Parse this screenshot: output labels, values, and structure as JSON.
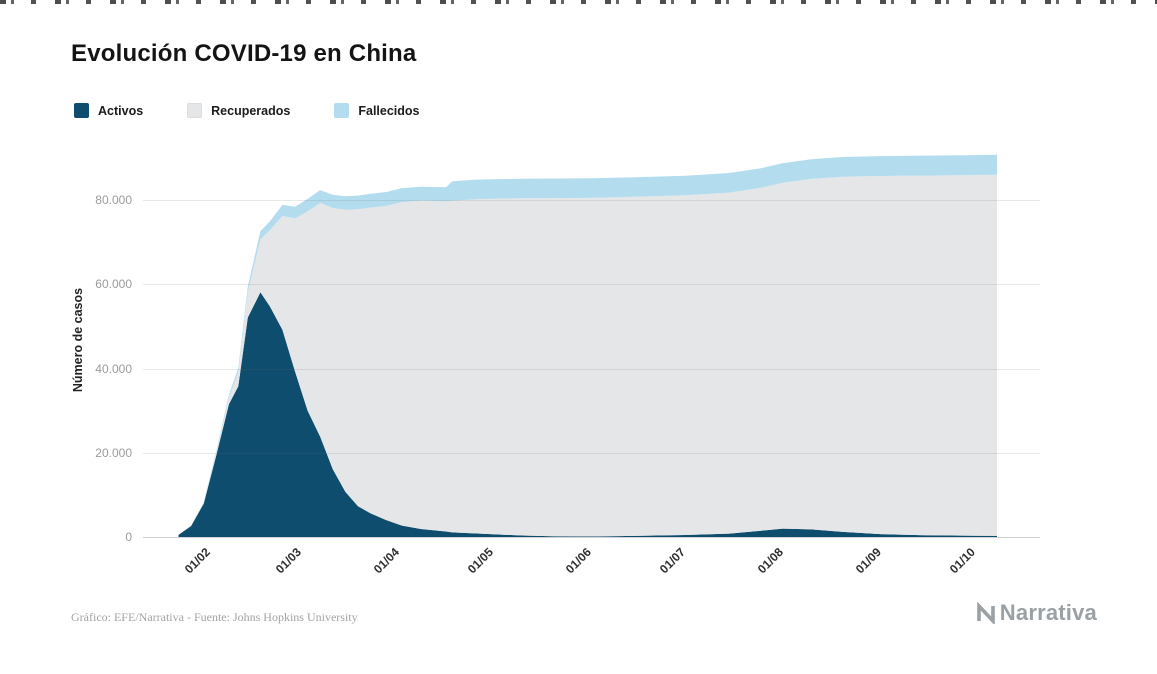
{
  "header": {
    "title": "Evolución COVID-19 en China"
  },
  "legend": {
    "items": [
      {
        "label": "Activos",
        "color": "#0e4d6e"
      },
      {
        "label": "Recuperados",
        "color": "#e5e6e7"
      },
      {
        "label": "Fallecidos",
        "color": "#b3ddef"
      }
    ]
  },
  "y_axis": {
    "label": "Número de casos",
    "ticks": [
      "0",
      "20.000",
      "40.000",
      "60.000",
      "80.000"
    ]
  },
  "x_axis": {
    "ticks": [
      "01/02",
      "01/03",
      "01/04",
      "01/05",
      "01/06",
      "01/07",
      "01/08",
      "01/09",
      "01/10"
    ]
  },
  "footer": {
    "credit": "Gráfico: EFE/Narrativa - Fuente: Johns Hopkins University",
    "brand": "Narrativa"
  },
  "chart_data": {
    "type": "area",
    "stacked": true,
    "title": "Evolución COVID-19 en China",
    "ylabel": "Número de casos",
    "ylim": [
      0,
      95000
    ],
    "grid": "horizontal",
    "legend_position": "top-left",
    "x_tick_labels": [
      "01/02",
      "01/03",
      "01/04",
      "01/05",
      "01/06",
      "01/07",
      "01/08",
      "01/09",
      "01/10"
    ],
    "x": [
      "2020-01-22",
      "2020-01-26",
      "2020-01-30",
      "2020-02-03",
      "2020-02-07",
      "2020-02-10",
      "2020-02-13",
      "2020-02-17",
      "2020-02-20",
      "2020-02-24",
      "2020-02-28",
      "2020-03-03",
      "2020-03-07",
      "2020-03-11",
      "2020-03-15",
      "2020-03-19",
      "2020-03-23",
      "2020-03-28",
      "2020-04-02",
      "2020-04-08",
      "2020-04-16",
      "2020-04-18",
      "2020-04-25",
      "2020-05-01",
      "2020-05-10",
      "2020-05-20",
      "2020-06-01",
      "2020-06-15",
      "2020-07-01",
      "2020-07-15",
      "2020-07-25",
      "2020-08-01",
      "2020-08-10",
      "2020-08-20",
      "2020-09-01",
      "2020-09-15",
      "2020-10-01",
      "2020-10-08"
    ],
    "series": [
      {
        "name": "Activos",
        "color": "#0e4d6e",
        "values": [
          500,
          2600,
          7900,
          19400,
          31500,
          35800,
          52100,
          58100,
          54800,
          49200,
          39300,
          30000,
          23800,
          16100,
          10700,
          7300,
          5600,
          4000,
          2700,
          1900,
          1300,
          1100,
          850,
          650,
          350,
          160,
          110,
          250,
          470,
          800,
          1500,
          2000,
          1800,
          1200,
          700,
          400,
          280,
          260
        ]
      },
      {
        "name": "Recuperados",
        "color": "#e5e6e7",
        "values": [
          30,
          50,
          170,
          630,
          1540,
          3300,
          6000,
          12600,
          18000,
          27000,
          36300,
          47300,
          55500,
          62000,
          67000,
          70500,
          72600,
          74600,
          76800,
          77900,
          78400,
          78700,
          79300,
          79650,
          80050,
          80300,
          80400,
          80500,
          80650,
          80950,
          81400,
          82100,
          83200,
          84300,
          85000,
          85400,
          85650,
          85750
        ]
      },
      {
        "name": "Fallecidos",
        "color": "#b3ddef",
        "values": [
          20,
          80,
          215,
          430,
          720,
          1020,
          1370,
          1870,
          2130,
          2630,
          2800,
          2950,
          3050,
          3160,
          3200,
          3250,
          3280,
          3300,
          3320,
          3340,
          3350,
          4640,
          4640,
          4640,
          4640,
          4640,
          4640,
          4640,
          4650,
          4650,
          4660,
          4670,
          4680,
          4700,
          4720,
          4730,
          4740,
          4740
        ]
      }
    ]
  }
}
